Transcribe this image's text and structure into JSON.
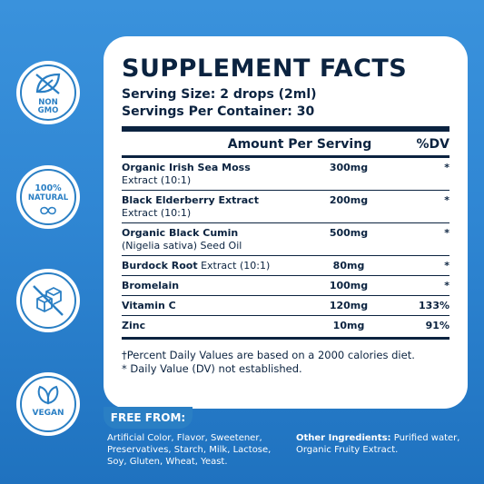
{
  "badges": [
    {
      "icon": "leaf-icon",
      "lines": [
        "NON",
        "GMO"
      ]
    },
    {
      "icon": "seed-icon",
      "lines": [
        "100%",
        "NATURAL"
      ]
    },
    {
      "icon": "no-sugar-icon",
      "lines": []
    },
    {
      "icon": "vegan-leaves-icon",
      "lines": [
        "VEGAN"
      ]
    }
  ],
  "facts": {
    "title": "SUPPLEMENT FACTS",
    "serving_size": "Serving Size: 2 drops (2ml)",
    "servings_per_container": "Servings Per Container: 30",
    "header_amount": "Amount Per Serving",
    "header_dv": "%DV",
    "rows": [
      {
        "name_bold": "Organic Irish Sea Moss",
        "name_rest": "Extract (10:1)",
        "amount": "300mg",
        "dv": "*"
      },
      {
        "name_bold": "Black Elderberry Extract",
        "name_rest": "Extract (10:1)",
        "amount": "200mg",
        "dv": "*"
      },
      {
        "name_bold": "Organic Black Cumin",
        "name_rest": "(Nigelia sativa) Seed Oil",
        "amount": "500mg",
        "dv": "*"
      },
      {
        "name_bold": "Burdock Root",
        "name_rest": "Extract (10:1)",
        "amount": "80mg",
        "dv": "*"
      },
      {
        "name_bold": "Bromelain",
        "name_rest": "",
        "amount": "100mg",
        "dv": "*"
      },
      {
        "name_bold": "Vitamin C",
        "name_rest": "",
        "amount": "120mg",
        "dv": "133%"
      },
      {
        "name_bold": "Zinc",
        "name_rest": "",
        "amount": "10mg",
        "dv": "91%"
      }
    ],
    "footnote_1": "†Percent Daily Values are based on a 2000 calories diet.",
    "footnote_2": "* Daily Value (DV) not established."
  },
  "free_from": {
    "label": "FREE FROM:",
    "text": "Artificial Color, Flavor, Sweetener, Preservatives, Starch, Milk, Lactose, Soy, Gluten, Wheat, Yeast."
  },
  "other_ingredients": {
    "label": "Other Ingredients:",
    "text": " Purified water, Organic Fruity Extract."
  },
  "colors": {
    "background": "#2f86d3",
    "accent": "#2a7fc4",
    "ink": "#0b2340"
  }
}
